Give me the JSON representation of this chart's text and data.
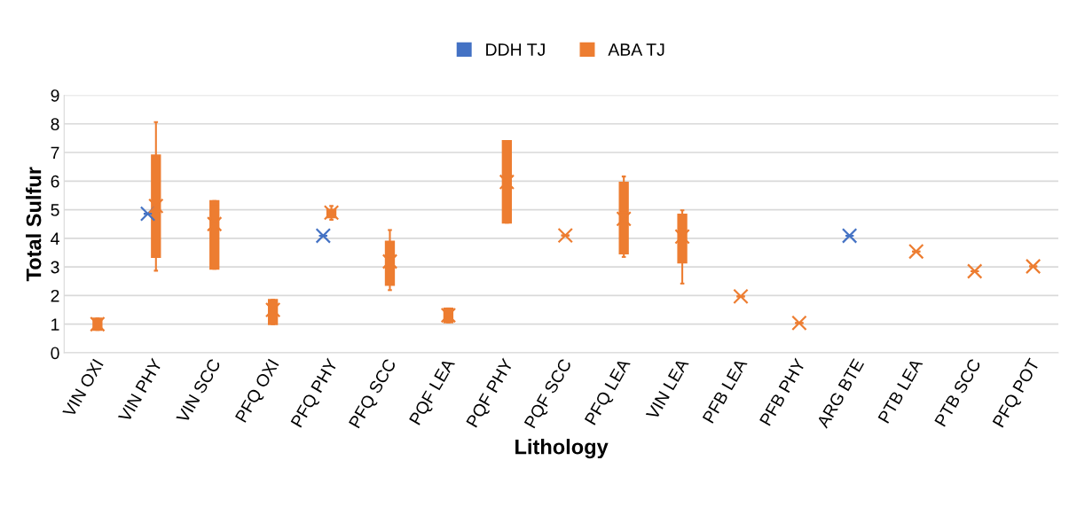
{
  "chart_data": {
    "type": "box",
    "xlabel": "Lithology",
    "ylabel": "Total Sulfur",
    "categories": [
      "VIN OXI",
      "VIN PHY",
      "VIN SCC",
      "PFQ OXI",
      "PFQ PHY",
      "PFQ SCC",
      "PQF LEA",
      "PQF PHY",
      "PQF SCC",
      "PFQ LEA",
      "VIN LEA",
      "PFB LEA",
      "PFB PHY",
      "ARG BTE",
      "PTB LEA",
      "PTB SCC",
      "PFQ POT"
    ],
    "ylim": [
      0,
      9
    ],
    "yticks": [
      0,
      1,
      2,
      3,
      4,
      5,
      6,
      7,
      8,
      9
    ],
    "grid": "y",
    "legend": "top",
    "marker": "cross",
    "series": [
      {
        "name": "DDH TJ",
        "color": "#4472c4",
        "boxes": [
          null,
          {
            "low": 4.86,
            "q1": 4.86,
            "median": 4.86,
            "q3": 4.86,
            "high": 4.86,
            "mean": 4.86
          },
          null,
          null,
          {
            "low": 4.09,
            "q1": 4.09,
            "median": 4.09,
            "q3": 4.09,
            "high": 4.09,
            "mean": 4.09
          },
          null,
          null,
          null,
          null,
          null,
          null,
          null,
          null,
          {
            "low": 4.09,
            "q1": 4.09,
            "median": 4.09,
            "q3": 4.09,
            "high": 4.09,
            "mean": 4.09
          },
          null,
          null,
          null
        ]
      },
      {
        "name": "ABA TJ",
        "color": "#ed7d31",
        "boxes": [
          {
            "low": 0.8,
            "q1": 0.8,
            "median": 1.0,
            "q3": 1.2,
            "high": 1.2,
            "mean": 1.0
          },
          {
            "low": 2.87,
            "q1": 3.35,
            "median": 4.95,
            "q3": 6.9,
            "high": 8.06,
            "mean": 5.13
          },
          {
            "low": 2.94,
            "q1": 2.94,
            "median": 5.2,
            "q3": 5.3,
            "high": 5.3,
            "mean": 4.5
          },
          {
            "low": 1.0,
            "q1": 1.0,
            "median": 1.45,
            "q3": 1.85,
            "high": 1.85,
            "mean": 1.5
          },
          {
            "low": 4.65,
            "q1": 4.73,
            "median": 4.87,
            "q3": 5.0,
            "high": 5.13,
            "mean": 4.9
          },
          {
            "low": 2.19,
            "q1": 2.37,
            "median": 3.35,
            "q3": 3.89,
            "high": 4.29,
            "mean": 3.19
          },
          {
            "low": 1.06,
            "q1": 1.06,
            "median": 1.31,
            "q3": 1.55,
            "high": 1.55,
            "mean": 1.31
          },
          {
            "low": 4.55,
            "q1": 4.55,
            "median": 5.97,
            "q3": 7.4,
            "high": 7.4,
            "mean": 5.97
          },
          {
            "low": 4.1,
            "q1": 4.1,
            "median": 4.1,
            "q3": 4.1,
            "high": 4.1,
            "mean": 4.1
          },
          {
            "low": 3.35,
            "q1": 3.47,
            "median": 4.91,
            "q3": 5.95,
            "high": 6.16,
            "mean": 4.68
          },
          {
            "low": 2.42,
            "q1": 3.15,
            "median": 4.31,
            "q3": 4.83,
            "high": 4.98,
            "mean": 4.06
          },
          {
            "low": 1.97,
            "q1": 1.97,
            "median": 1.97,
            "q3": 1.97,
            "high": 1.97,
            "mean": 1.97
          },
          {
            "low": 1.04,
            "q1": 1.04,
            "median": 1.04,
            "q3": 1.04,
            "high": 1.04,
            "mean": 1.04
          },
          null,
          {
            "low": 3.54,
            "q1": 3.54,
            "median": 3.54,
            "q3": 3.54,
            "high": 3.54,
            "mean": 3.54
          },
          {
            "low": 2.85,
            "q1": 2.85,
            "median": 2.85,
            "q3": 2.85,
            "high": 2.85,
            "mean": 2.85
          },
          {
            "low": 3.02,
            "q1": 3.02,
            "median": 3.02,
            "q3": 3.02,
            "high": 3.02,
            "mean": 3.02
          }
        ]
      }
    ]
  }
}
